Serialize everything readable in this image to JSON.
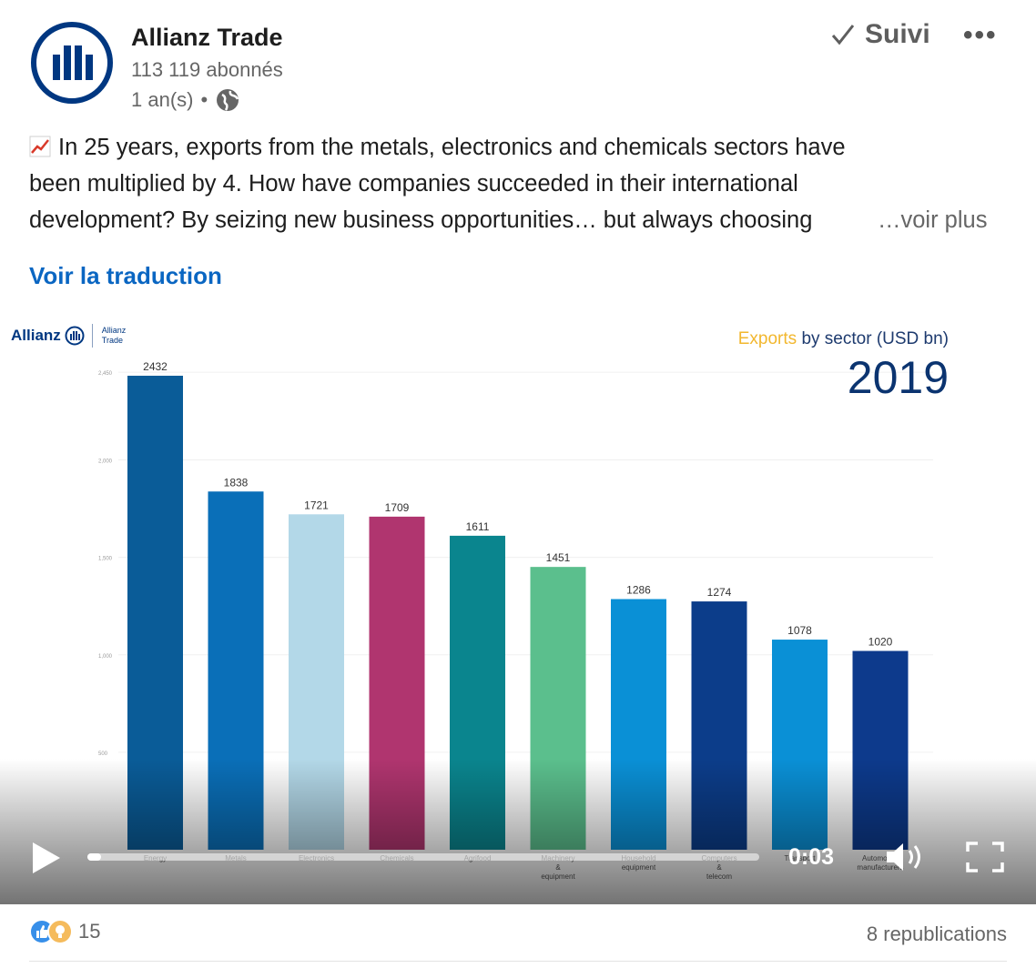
{
  "header": {
    "author": "Allianz Trade",
    "followers": "113 119 abonnés",
    "age": "1 an(s)",
    "age_sep": "•",
    "follow_label": "Suivi",
    "more_label": "•••"
  },
  "post": {
    "line1": "In 25 years, exports from the metals, electronics and chemicals sectors have",
    "line2": "been multiplied by 4. How have companies succeeded in their international",
    "line3": "development? By seizing new business opportunities… but always choosing",
    "see_more": "…voir plus",
    "translate": "Voir la traduction"
  },
  "video": {
    "brand_word": "Allianz",
    "brand_sub_1": "Allianz",
    "brand_sub_2": "Trade",
    "title_highlight": "Exports",
    "title_rest": " by sector (USD bn)",
    "year": "2019",
    "time": "0:03",
    "progress": 0.02
  },
  "chart_data": {
    "type": "bar",
    "title": "Exports by sector (USD bn)",
    "subtitle": "2019",
    "categories": [
      "Energy",
      "Metals",
      "Electronics",
      "Chemicals",
      "Agrifood",
      "Machinery & equipment",
      "Household equipment",
      "Computers & telecom",
      "Transport",
      "Automotive manufacturers"
    ],
    "values": [
      2432,
      1838,
      1721,
      1709,
      1611,
      1451,
      1286,
      1274,
      1078,
      1020
    ],
    "colors": [
      "#0a5c98",
      "#0a6fb8",
      "#b3d8e8",
      "#b0356f",
      "#0a858e",
      "#5bbf8d",
      "#0a90d6",
      "#0c3d8a",
      "#0a90d6",
      "#0d3a8c"
    ],
    "yticks": [
      "2,450",
      "2,000",
      "1,500",
      "1,000",
      "500"
    ],
    "ytick_values": [
      2450,
      2000,
      1500,
      1000,
      500
    ],
    "ylim": [
      0,
      2500
    ],
    "grid": true
  },
  "footer": {
    "reaction_count": "15",
    "reposts": "8 republications"
  },
  "icons": {
    "like": "thumbs-up-icon",
    "insight": "lightbulb-icon",
    "globe": "globe-icon"
  }
}
